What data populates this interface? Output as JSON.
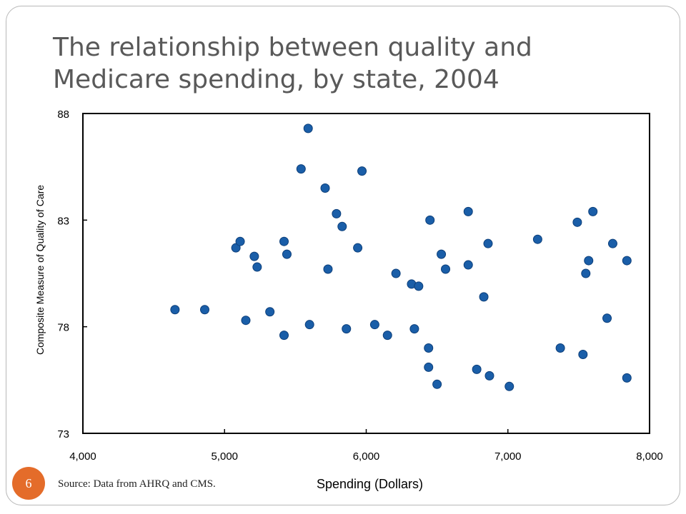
{
  "slide": {
    "title_line1": "The relationship between quality and",
    "title_line2": "Medicare spending, by state, 2004",
    "number": "6",
    "source": "Source: Data from AHRQ and CMS.",
    "accent_color": "#e46c2a"
  },
  "chart_data": {
    "type": "scatter",
    "title": "The relationship between quality and Medicare spending, by state, 2004",
    "xlabel": "Spending (Dollars)",
    "ylabel": "Composite Measure of Quality of Care",
    "xlim": [
      4000,
      8000
    ],
    "ylim": [
      73,
      88
    ],
    "xticks": [
      4000,
      5000,
      6000,
      7000,
      8000
    ],
    "xtick_labels": [
      "4,000",
      "5,000",
      "6,000",
      "7,000",
      "8,000"
    ],
    "yticks": [
      73,
      78,
      83,
      88
    ],
    "ytick_labels": [
      "73",
      "78",
      "83",
      "88"
    ],
    "grid": false,
    "marker_color": "#1a5ea8",
    "points": [
      {
        "x": 4650,
        "y": 78.8
      },
      {
        "x": 4860,
        "y": 78.8
      },
      {
        "x": 5080,
        "y": 81.7
      },
      {
        "x": 5110,
        "y": 82.0
      },
      {
        "x": 5150,
        "y": 78.3
      },
      {
        "x": 5210,
        "y": 81.3
      },
      {
        "x": 5230,
        "y": 80.8
      },
      {
        "x": 5320,
        "y": 78.7
      },
      {
        "x": 5420,
        "y": 82.0
      },
      {
        "x": 5420,
        "y": 77.6
      },
      {
        "x": 5440,
        "y": 81.4
      },
      {
        "x": 5540,
        "y": 85.4
      },
      {
        "x": 5590,
        "y": 87.3
      },
      {
        "x": 5600,
        "y": 78.1
      },
      {
        "x": 5710,
        "y": 84.5
      },
      {
        "x": 5730,
        "y": 80.7
      },
      {
        "x": 5790,
        "y": 83.3
      },
      {
        "x": 5830,
        "y": 82.7
      },
      {
        "x": 5860,
        "y": 77.9
      },
      {
        "x": 5940,
        "y": 81.7
      },
      {
        "x": 5970,
        "y": 85.3
      },
      {
        "x": 6060,
        "y": 78.1
      },
      {
        "x": 6150,
        "y": 77.6
      },
      {
        "x": 6210,
        "y": 80.5
      },
      {
        "x": 6320,
        "y": 80.0
      },
      {
        "x": 6340,
        "y": 77.9
      },
      {
        "x": 6370,
        "y": 79.9
      },
      {
        "x": 6440,
        "y": 77.0
      },
      {
        "x": 6440,
        "y": 76.1
      },
      {
        "x": 6450,
        "y": 83.0
      },
      {
        "x": 6500,
        "y": 75.3
      },
      {
        "x": 6530,
        "y": 81.4
      },
      {
        "x": 6560,
        "y": 80.7
      },
      {
        "x": 6720,
        "y": 83.4
      },
      {
        "x": 6720,
        "y": 80.9
      },
      {
        "x": 6780,
        "y": 76.0
      },
      {
        "x": 6830,
        "y": 79.4
      },
      {
        "x": 6860,
        "y": 81.9
      },
      {
        "x": 6870,
        "y": 75.7
      },
      {
        "x": 7010,
        "y": 75.2
      },
      {
        "x": 7210,
        "y": 82.1
      },
      {
        "x": 7370,
        "y": 77.0
      },
      {
        "x": 7490,
        "y": 82.9
      },
      {
        "x": 7530,
        "y": 76.7
      },
      {
        "x": 7550,
        "y": 80.5
      },
      {
        "x": 7570,
        "y": 81.1
      },
      {
        "x": 7600,
        "y": 83.4
      },
      {
        "x": 7700,
        "y": 78.4
      },
      {
        "x": 7740,
        "y": 81.9
      },
      {
        "x": 7840,
        "y": 75.6
      },
      {
        "x": 7840,
        "y": 81.1
      }
    ]
  }
}
